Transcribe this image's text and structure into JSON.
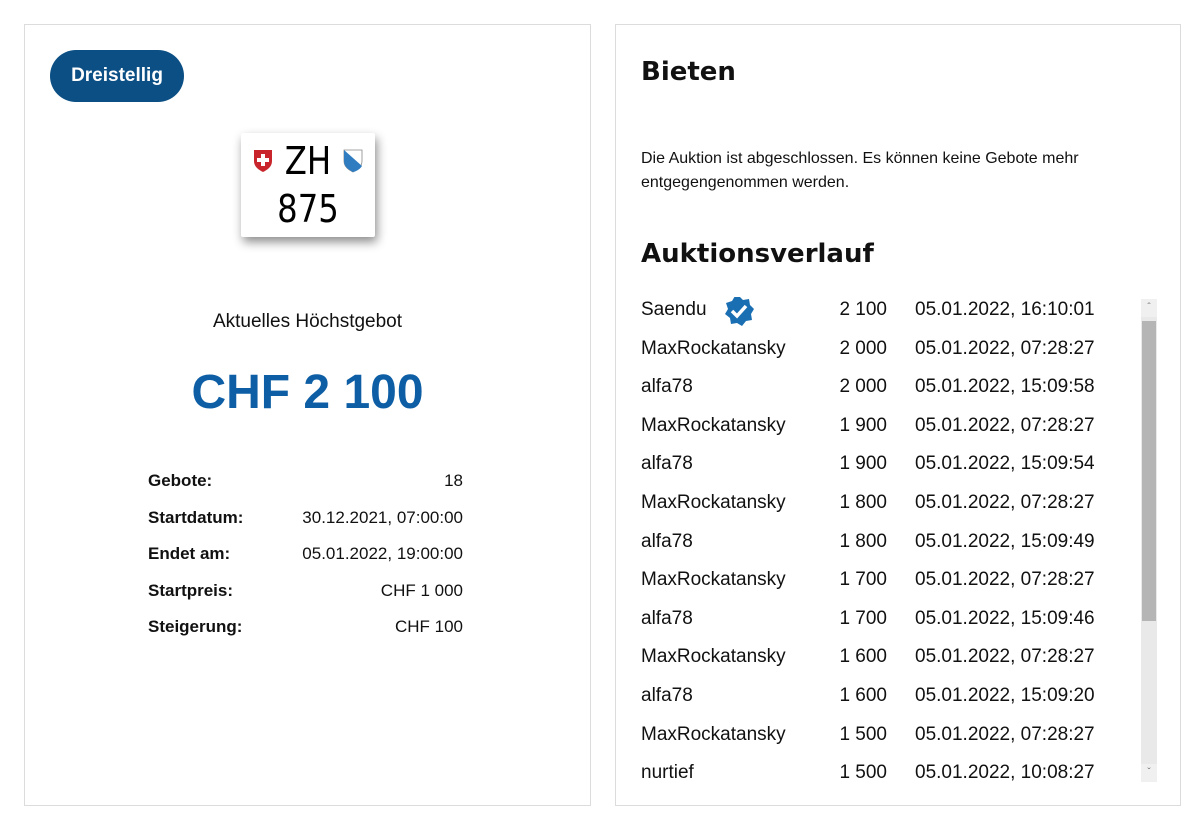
{
  "left": {
    "category_badge": "Dreistellig",
    "plate": {
      "canton": "ZH",
      "number": "875"
    },
    "current_bid_label": "Aktuelles Höchstgebot",
    "current_bid": "CHF 2 100",
    "info": [
      {
        "label": "Gebote:",
        "value": "18"
      },
      {
        "label": "Startdatum:",
        "value": "30.12.2021, 07:00:00"
      },
      {
        "label": "Endet am:",
        "value": "05.01.2022, 19:00:00"
      },
      {
        "label": "Startpreis:",
        "value": "CHF 1 000"
      },
      {
        "label": "Steigerung:",
        "value": "CHF 100"
      }
    ]
  },
  "right": {
    "bid_title": "Bieten",
    "closed_message": "Die Auktion ist abgeschlossen. Es können keine Gebote mehr entgegengenommen werden.",
    "history_title": "Auktionsverlauf",
    "bids": [
      {
        "name": "Saendu",
        "amount": "2 100",
        "date": "05.01.2022, 16:10:01",
        "verified": true
      },
      {
        "name": "MaxRockatansky",
        "amount": "2 000",
        "date": "05.01.2022, 07:28:27"
      },
      {
        "name": "alfa78",
        "amount": "2 000",
        "date": "05.01.2022, 15:09:58"
      },
      {
        "name": "MaxRockatansky",
        "amount": "1 900",
        "date": "05.01.2022, 07:28:27"
      },
      {
        "name": "alfa78",
        "amount": "1 900",
        "date": "05.01.2022, 15:09:54"
      },
      {
        "name": "MaxRockatansky",
        "amount": "1 800",
        "date": "05.01.2022, 07:28:27"
      },
      {
        "name": "alfa78",
        "amount": "1 800",
        "date": "05.01.2022, 15:09:49"
      },
      {
        "name": "MaxRockatansky",
        "amount": "1 700",
        "date": "05.01.2022, 07:28:27"
      },
      {
        "name": "alfa78",
        "amount": "1 700",
        "date": "05.01.2022, 15:09:46"
      },
      {
        "name": "MaxRockatansky",
        "amount": "1 600",
        "date": "05.01.2022, 07:28:27"
      },
      {
        "name": "alfa78",
        "amount": "1 600",
        "date": "05.01.2022, 15:09:20"
      },
      {
        "name": "MaxRockatansky",
        "amount": "1 500",
        "date": "05.01.2022, 07:28:27"
      },
      {
        "name": "nurtief",
        "amount": "1 500",
        "date": "05.01.2022, 10:08:27"
      }
    ]
  },
  "colors": {
    "badge": "#0b4f84",
    "price": "#0d5ea5",
    "verified": "#1a6fb3"
  }
}
